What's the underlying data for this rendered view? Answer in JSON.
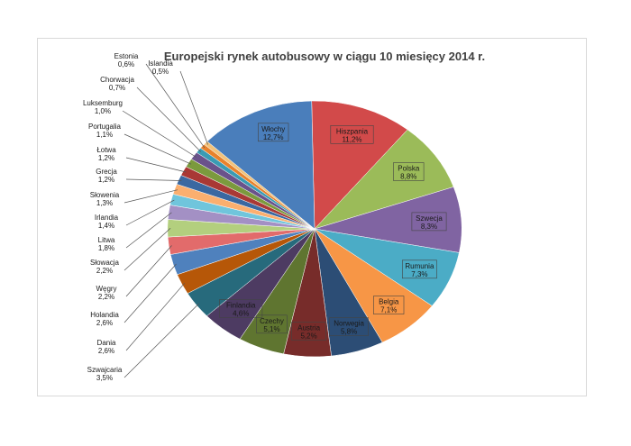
{
  "chart_data": {
    "type": "pie",
    "title": "Europejski rynek autobusowy w ciągu 10 miesięcy 2014 r.",
    "series": [
      {
        "label": "Hiszpania",
        "value_text": "11,2%",
        "value": 11.2,
        "color": "#d24a4a"
      },
      {
        "label": "Polska",
        "value_text": "8,8%",
        "value": 8.8,
        "color": "#9bbb59"
      },
      {
        "label": "Szwecja",
        "value_text": "8,3%",
        "value": 8.3,
        "color": "#8064a2"
      },
      {
        "label": "Rumunia",
        "value_text": "7,3%",
        "value": 7.3,
        "color": "#4bacc6"
      },
      {
        "label": "Belgia",
        "value_text": "7,1%",
        "value": 7.1,
        "color": "#f79646"
      },
      {
        "label": "Norwegia",
        "value_text": "5,8%",
        "value": 5.8,
        "color": "#2c4d75"
      },
      {
        "label": "Austria",
        "value_text": "5,2%",
        "value": 5.2,
        "color": "#772c2a"
      },
      {
        "label": "Czechy",
        "value_text": "5,1%",
        "value": 5.1,
        "color": "#5f7530"
      },
      {
        "label": "Finlandia",
        "value_text": "4,6%",
        "value": 4.6,
        "color": "#4d3b62"
      },
      {
        "label": "Szwajcaria",
        "value_text": "3,5%",
        "value": 3.5,
        "color": "#276a7c"
      },
      {
        "label": "Dania",
        "value_text": "2,6%",
        "value": 2.6,
        "color": "#b65708"
      },
      {
        "label": "Holandia",
        "value_text": "2,6%",
        "value": 2.6,
        "color": "#4f81bd"
      },
      {
        "label": "Węgry",
        "value_text": "2,2%",
        "value": 2.2,
        "color": "#e26b6b"
      },
      {
        "label": "Słowacja",
        "value_text": "2,2%",
        "value": 2.2,
        "color": "#b3cf7e"
      },
      {
        "label": "Litwa",
        "value_text": "1,8%",
        "value": 1.8,
        "color": "#a390c4"
      },
      {
        "label": "Irlandia",
        "value_text": "1,4%",
        "value": 1.4,
        "color": "#70c5dc"
      },
      {
        "label": "Słowenia",
        "value_text": "1,3%",
        "value": 1.3,
        "color": "#fbaf6f"
      },
      {
        "label": "Grecja",
        "value_text": "1,2%",
        "value": 1.2,
        "color": "#3a68a1"
      },
      {
        "label": "Łotwa",
        "value_text": "1,2%",
        "value": 1.2,
        "color": "#a93835"
      },
      {
        "label": "Portugalia",
        "value_text": "1,1%",
        "value": 1.1,
        "color": "#7b9a3d"
      },
      {
        "label": "Luksemburg",
        "value_text": "1,0%",
        "value": 1.0,
        "color": "#6a528b"
      },
      {
        "label": "Chorwacja",
        "value_text": "0,7%",
        "value": 0.7,
        "color": "#3a9bb4"
      },
      {
        "label": "Estonia",
        "value_text": "0,6%",
        "value": 0.6,
        "color": "#e8822c"
      },
      {
        "label": "Islandia",
        "value_text": "0,5%",
        "value": 0.5,
        "color": "#f2c27a"
      },
      {
        "label": "Włochy",
        "value_text": "12,7%",
        "value": 12.7,
        "color": "#4a7ebb"
      }
    ]
  }
}
